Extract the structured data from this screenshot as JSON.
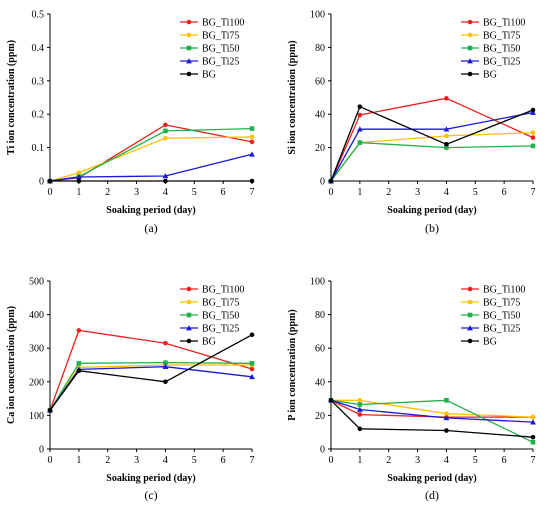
{
  "chart_data": [
    {
      "type": "line",
      "panel_label": "(a)",
      "xlabel": "Soaking period (day)",
      "ylabel": "Ti ion concentration (ppm)",
      "xlim": [
        0,
        7
      ],
      "ylim": [
        0,
        0.5
      ],
      "xticks": [
        0,
        1,
        2,
        3,
        4,
        5,
        6,
        7
      ],
      "yticks": [
        "0",
        "0.1",
        "0.2",
        "0.3",
        "0.4",
        "0.5"
      ],
      "legend_position": "top-right",
      "grid": false,
      "series": [
        {
          "name": "BG_Ti100",
          "color": "#e8211c",
          "marker": "circle",
          "x": [
            0,
            1,
            4,
            7
          ],
          "y": [
            0,
            0.01,
            0.168,
            0.117
          ]
        },
        {
          "name": "BG_Ti75",
          "color": "#ffc000",
          "marker": "circle",
          "x": [
            0,
            1,
            4,
            7
          ],
          "y": [
            0,
            0.025,
            0.128,
            0.132
          ]
        },
        {
          "name": "BG_Ti50",
          "color": "#21b14b",
          "marker": "square",
          "x": [
            0,
            1,
            4,
            7
          ],
          "y": [
            0,
            0.013,
            0.15,
            0.157
          ]
        },
        {
          "name": "BG_Ti25",
          "color": "#1a1adb",
          "marker": "triangle",
          "x": [
            0,
            1,
            4,
            7
          ],
          "y": [
            0,
            0.012,
            0.015,
            0.08
          ]
        },
        {
          "name": "BG",
          "color": "#000000",
          "marker": "circle",
          "x": [
            0,
            1,
            4,
            7
          ],
          "y": [
            0,
            0,
            0,
            0
          ]
        }
      ]
    },
    {
      "type": "line",
      "panel_label": "(b)",
      "xlabel": "Soaking period (day)",
      "ylabel": "Si ion concentration (ppm)",
      "xlim": [
        0,
        7
      ],
      "ylim": [
        0,
        100
      ],
      "xticks": [
        0,
        1,
        2,
        3,
        4,
        5,
        6,
        7
      ],
      "yticks": [
        "0",
        "20",
        "40",
        "60",
        "80",
        "100"
      ],
      "legend_position": "top-right",
      "grid": false,
      "series": [
        {
          "name": "BG_Ti100",
          "color": "#e8211c",
          "marker": "circle",
          "x": [
            0,
            1,
            4,
            7
          ],
          "y": [
            0,
            39.5,
            49.5,
            26
          ]
        },
        {
          "name": "BG_Ti75",
          "color": "#ffc000",
          "marker": "circle",
          "x": [
            0,
            1,
            4,
            7
          ],
          "y": [
            0,
            23,
            27,
            29
          ]
        },
        {
          "name": "BG_Ti50",
          "color": "#21b14b",
          "marker": "square",
          "x": [
            0,
            1,
            4,
            7
          ],
          "y": [
            0,
            23,
            20,
            21
          ]
        },
        {
          "name": "BG_Ti25",
          "color": "#1a1adb",
          "marker": "triangle",
          "x": [
            0,
            1,
            4,
            7
          ],
          "y": [
            0,
            31,
            31,
            41
          ]
        },
        {
          "name": "BG",
          "color": "#000000",
          "marker": "circle",
          "x": [
            0,
            1,
            4,
            7
          ],
          "y": [
            0,
            44.5,
            22,
            42.5
          ]
        }
      ]
    },
    {
      "type": "line",
      "panel_label": "(c)",
      "xlabel": "Soaking period (day)",
      "ylabel": "Ca ion concentration (ppm)",
      "xlim": [
        0,
        7
      ],
      "ylim": [
        0,
        500
      ],
      "xticks": [
        0,
        1,
        2,
        3,
        4,
        5,
        6,
        7
      ],
      "yticks": [
        "0",
        "100",
        "200",
        "300",
        "400",
        "500"
      ],
      "legend_position": "top-right",
      "grid": false,
      "series": [
        {
          "name": "BG_Ti100",
          "color": "#e8211c",
          "marker": "circle",
          "x": [
            0,
            1,
            4,
            7
          ],
          "y": [
            115,
            353,
            315,
            238
          ]
        },
        {
          "name": "BG_Ti75",
          "color": "#ffc000",
          "marker": "circle",
          "x": [
            0,
            1,
            4,
            7
          ],
          "y": [
            115,
            243,
            250,
            250
          ]
        },
        {
          "name": "BG_Ti50",
          "color": "#21b14b",
          "marker": "square",
          "x": [
            0,
            1,
            4,
            7
          ],
          "y": [
            115,
            255,
            257,
            255
          ]
        },
        {
          "name": "BG_Ti25",
          "color": "#1a1adb",
          "marker": "triangle",
          "x": [
            0,
            1,
            4,
            7
          ],
          "y": [
            115,
            237,
            245,
            215
          ]
        },
        {
          "name": "BG",
          "color": "#000000",
          "marker": "circle",
          "x": [
            0,
            1,
            4,
            7
          ],
          "y": [
            115,
            233,
            200,
            340
          ]
        }
      ]
    },
    {
      "type": "line",
      "panel_label": "(d)",
      "xlabel": "Soaking period (day)",
      "ylabel": "P ion concentration (ppm)",
      "xlim": [
        0,
        7
      ],
      "ylim": [
        0,
        100
      ],
      "xticks": [
        0,
        1,
        2,
        3,
        4,
        5,
        6,
        7
      ],
      "yticks": [
        "0",
        "20",
        "40",
        "60",
        "80",
        "100"
      ],
      "legend_position": "top-right",
      "grid": false,
      "series": [
        {
          "name": "BG_Ti100",
          "color": "#e8211c",
          "marker": "circle",
          "x": [
            0,
            1,
            4,
            7
          ],
          "y": [
            29,
            20.5,
            19,
            19
          ]
        },
        {
          "name": "BG_Ti75",
          "color": "#ffc000",
          "marker": "circle",
          "x": [
            0,
            1,
            4,
            7
          ],
          "y": [
            29,
            29,
            21,
            19
          ]
        },
        {
          "name": "BG_Ti50",
          "color": "#21b14b",
          "marker": "square",
          "x": [
            0,
            1,
            4,
            7
          ],
          "y": [
            29,
            26.5,
            29,
            4
          ]
        },
        {
          "name": "BG_Ti25",
          "color": "#1a1adb",
          "marker": "triangle",
          "x": [
            0,
            1,
            4,
            7
          ],
          "y": [
            29,
            23.5,
            18.5,
            16
          ]
        },
        {
          "name": "BG",
          "color": "#000000",
          "marker": "circle",
          "x": [
            0,
            1,
            4,
            7
          ],
          "y": [
            29,
            12,
            11,
            7
          ]
        }
      ]
    }
  ]
}
